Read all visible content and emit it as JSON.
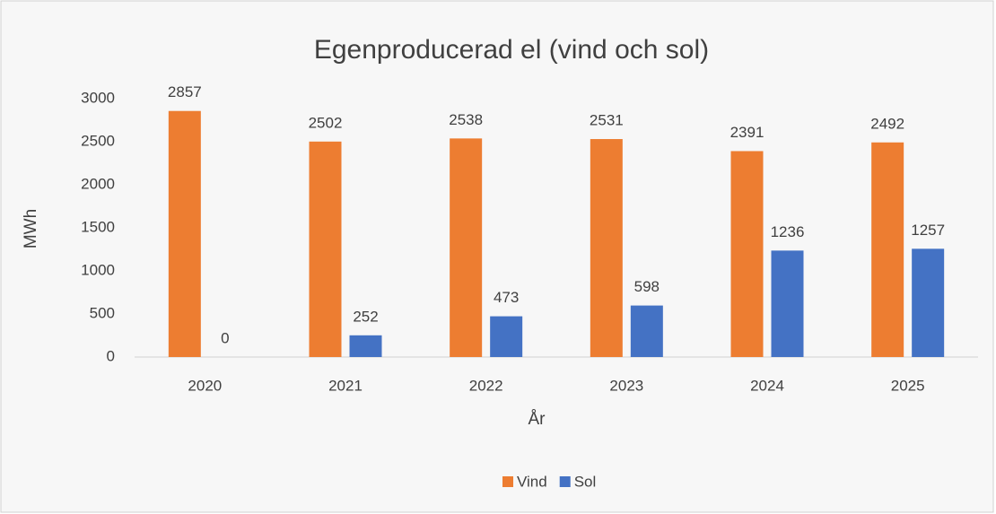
{
  "chart_data": {
    "type": "bar",
    "title": "Egenproducerad el (vind och sol)",
    "x_label": "År",
    "y_label": "MWh",
    "categories": [
      "2020",
      "2021",
      "2022",
      "2023",
      "2024",
      "2025"
    ],
    "series": [
      {
        "name": "Vind",
        "color": "#ed7d31",
        "values": [
          2857,
          2502,
          2538,
          2531,
          2391,
          2492
        ]
      },
      {
        "name": "Sol",
        "color": "#4472c4",
        "values": [
          0,
          252,
          473,
          598,
          1236,
          1257
        ]
      }
    ],
    "ylim": [
      0,
      3000
    ],
    "yticks": [
      0,
      500,
      1000,
      1500,
      2000,
      2500,
      3000
    ],
    "grid": false,
    "legend": "bottom"
  }
}
